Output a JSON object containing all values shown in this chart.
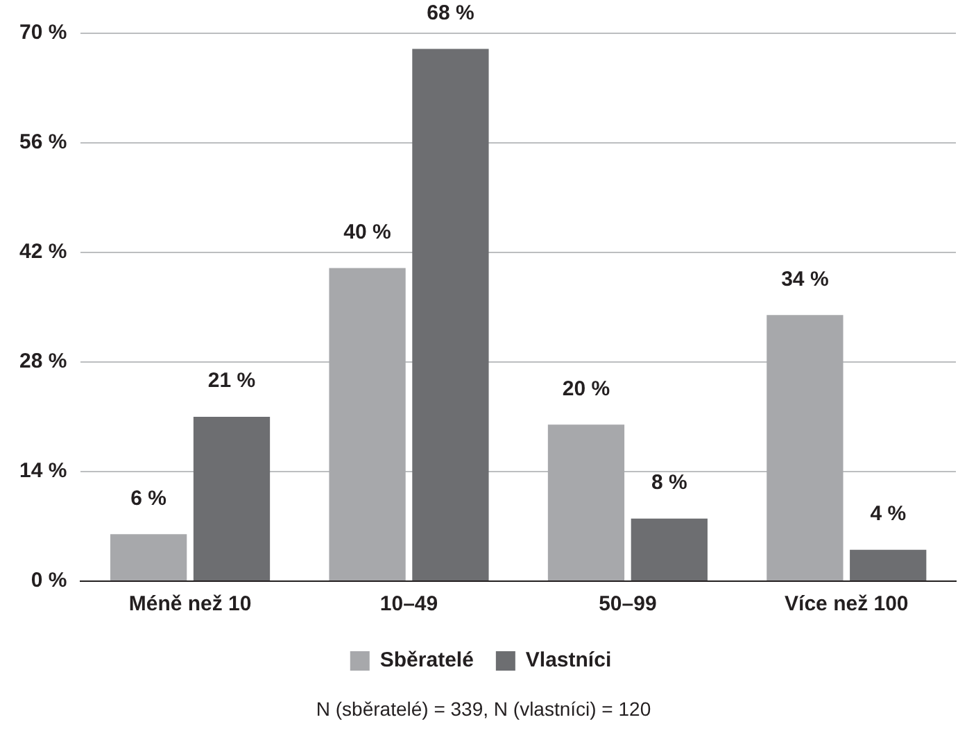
{
  "chart_data": {
    "type": "bar",
    "categories": [
      "Méně než 10",
      "10–49",
      "50–99",
      "Více než 100"
    ],
    "series": [
      {
        "name": "Sběratelé",
        "color": "#a7a8ab",
        "values": [
          6,
          40,
          20,
          34
        ],
        "value_labels": [
          "6 %",
          "40 %",
          "20 %",
          "34 %"
        ]
      },
      {
        "name": "Vlastníci",
        "color": "#6d6e71",
        "values": [
          21,
          68,
          8,
          4
        ],
        "value_labels": [
          "21 %",
          "68 %",
          "8 %",
          "4 %"
        ]
      }
    ],
    "ylim": [
      0,
      70
    ],
    "yticks": [
      {
        "value": 0,
        "label": "0 %"
      },
      {
        "value": 14,
        "label": "14 %"
      },
      {
        "value": 28,
        "label": "28 %"
      },
      {
        "value": 42,
        "label": "42 %"
      },
      {
        "value": 56,
        "label": "56 %"
      },
      {
        "value": 70,
        "label": "70 %"
      }
    ],
    "grid": "y",
    "legend": "bottom",
    "annotations": [
      "N (sběratelé) = 339, N (vlastníci) = 120"
    ]
  }
}
